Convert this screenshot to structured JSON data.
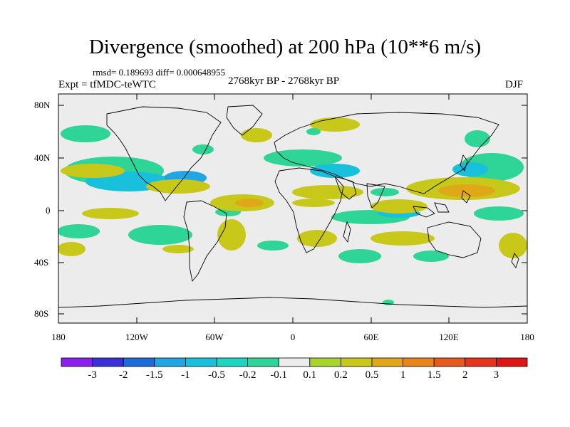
{
  "header": {
    "title": "Divergence (smoothed) at 200 hPa (10**6 m/s)",
    "stats": "rmsd= 0.189693 diff= 0.000648955",
    "experiment": "Expt = tfMDC-teWTC",
    "period": "2768kyr BP - 2768kyr BP",
    "season": "DJF"
  },
  "axes": {
    "y_ticks": [
      "80N",
      "40N",
      "0",
      "40S",
      "80S"
    ],
    "x_ticks": [
      "180",
      "120W",
      "60W",
      "0",
      "60E",
      "120E",
      "180"
    ]
  },
  "colorbar": {
    "labels": [
      "-3",
      "-2",
      "-1.5",
      "-1",
      "-0.5",
      "-0.2",
      "-0.1",
      "0.1",
      "0.2",
      "0.5",
      "1",
      "1.5",
      "2",
      "3"
    ],
    "colors": [
      "#8b20ee",
      "#3b2fd8",
      "#1e6ad8",
      "#22a6e3",
      "#19c0dc",
      "#1ed5c0",
      "#2fd596",
      "#ececec",
      "#a8d42e",
      "#c8c81a",
      "#e0a818",
      "#e8861c",
      "#e65a1e",
      "#e8321e",
      "#e01414"
    ]
  },
  "map": {
    "background_color": "#ececec",
    "land_outline_color": "#000000"
  }
}
